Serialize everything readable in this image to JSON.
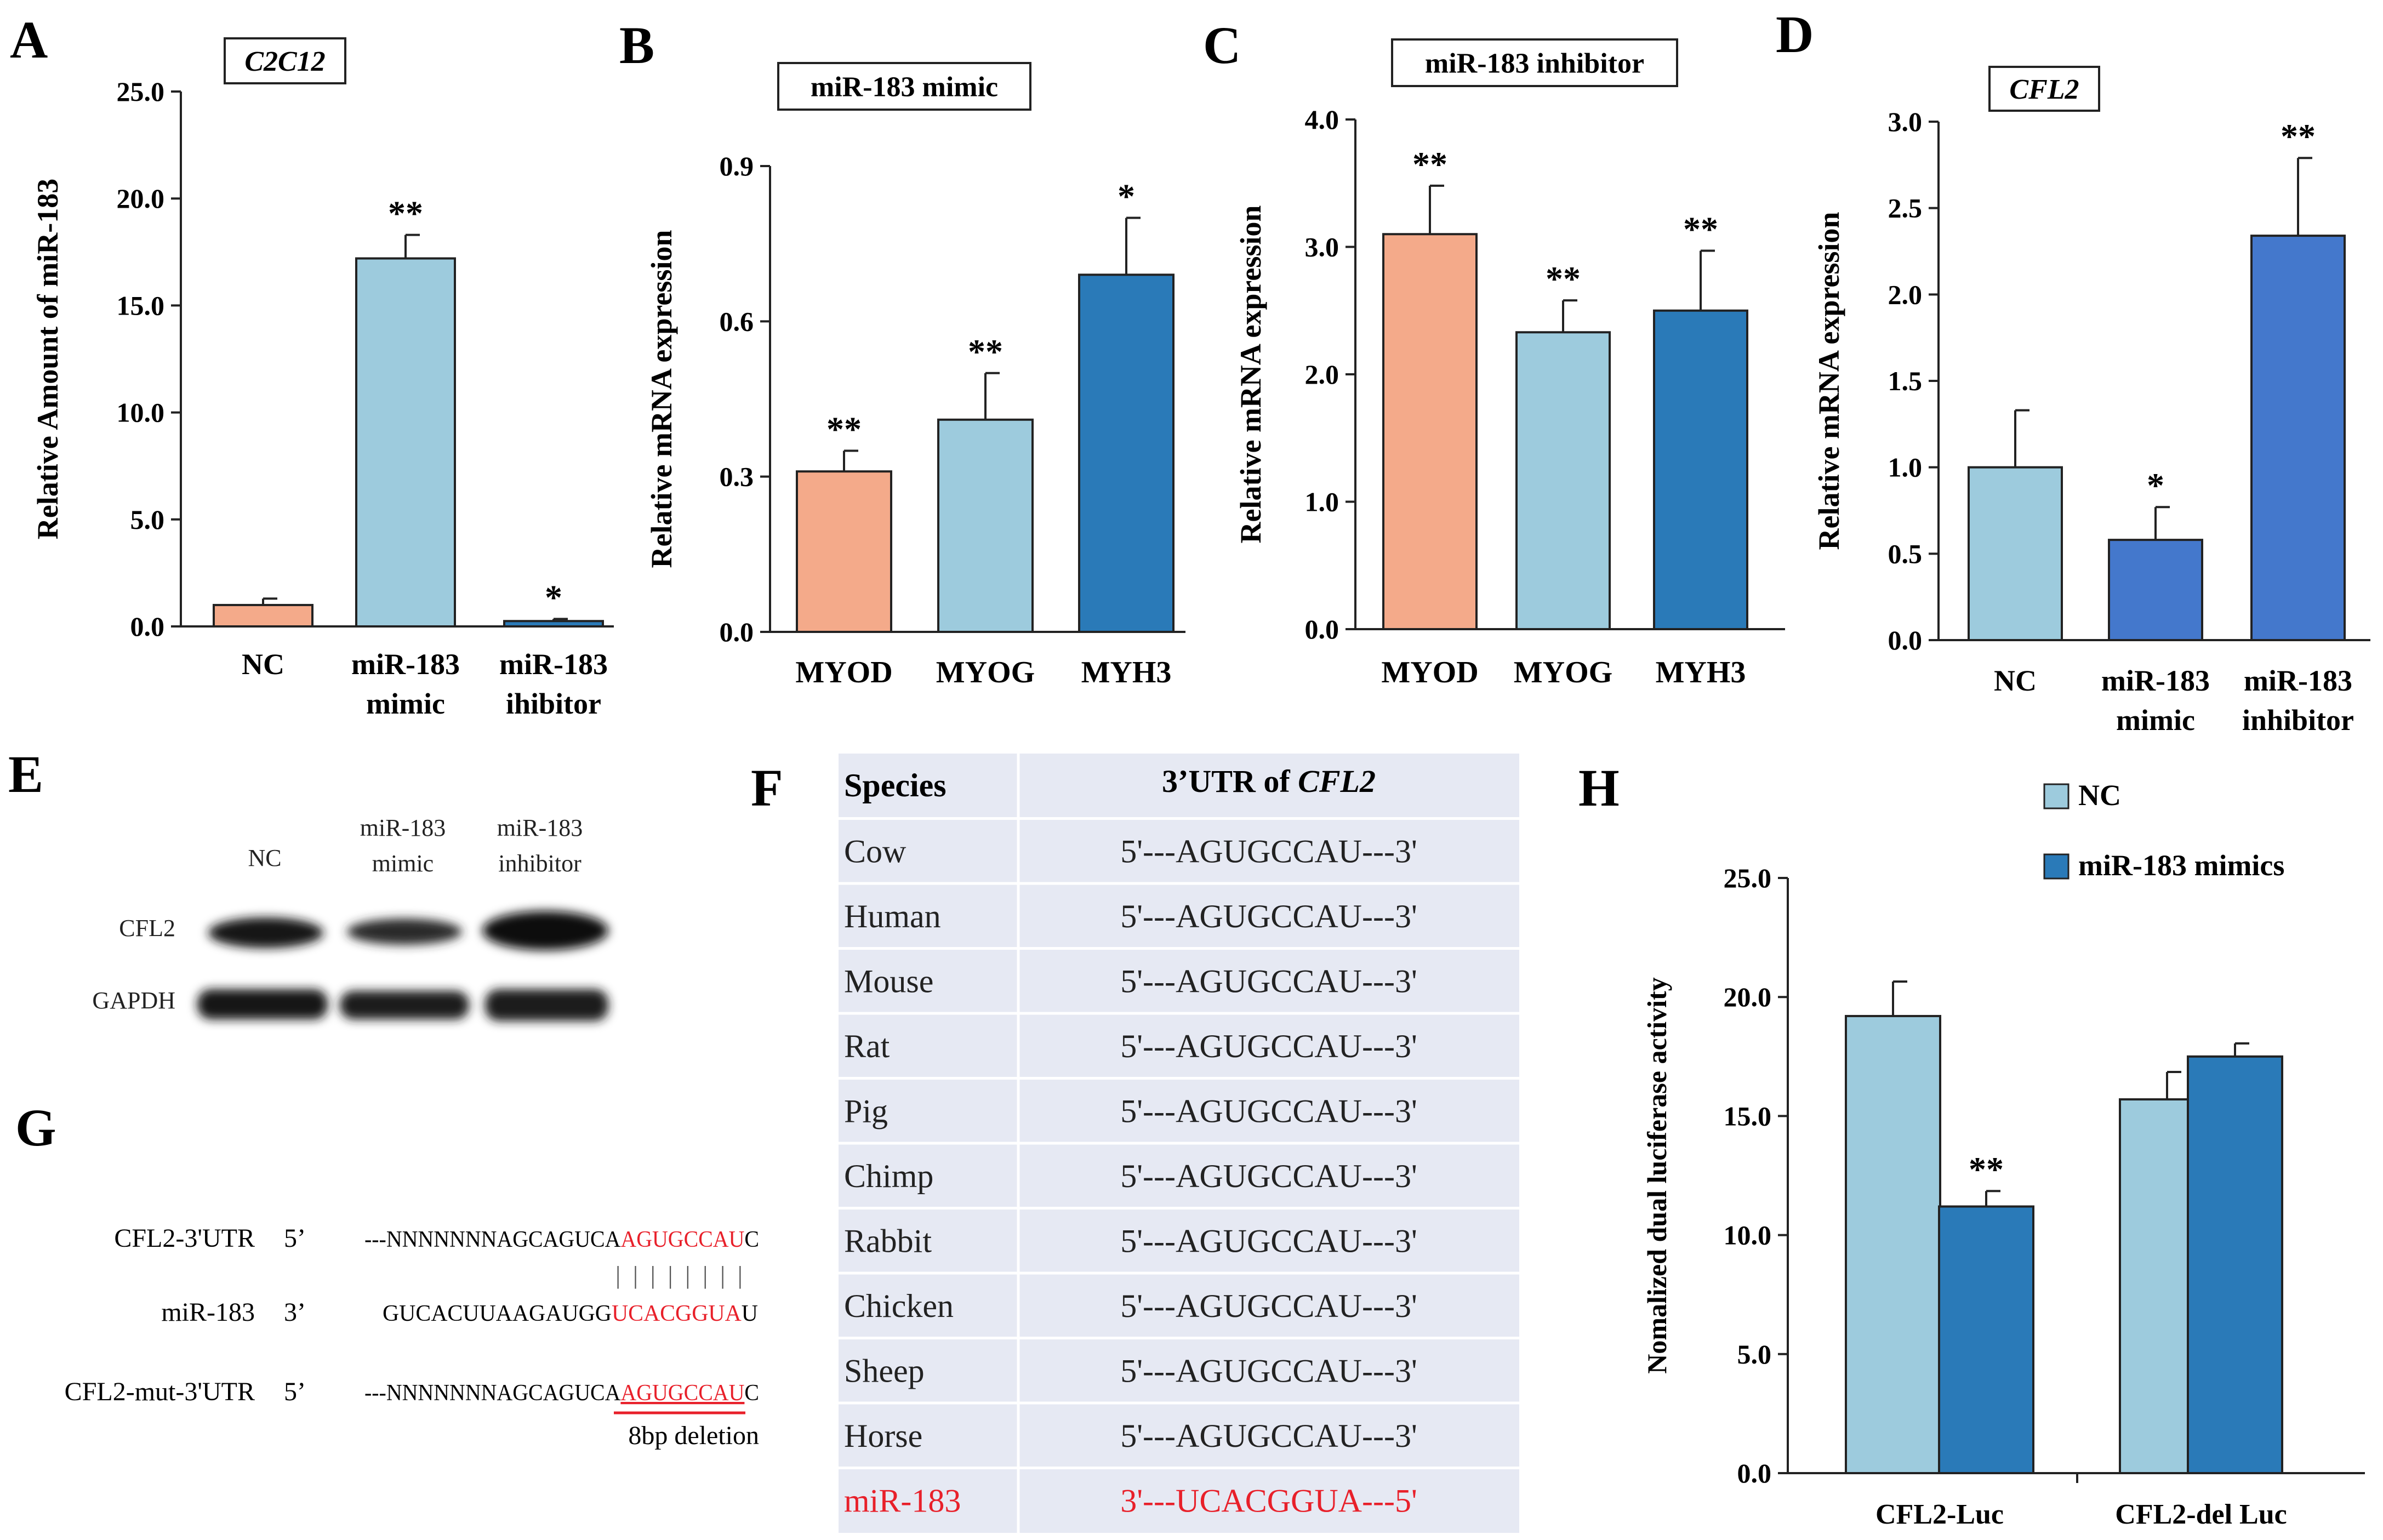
{
  "figure": {
    "colors": {
      "salmon": "#F4AA8A",
      "light_blue": "#9DCBDD",
      "mid_blue": "#2A7AB8",
      "royal_blue": "#4478CC",
      "table_bg": "#E6E9F3",
      "red": "#E8202A",
      "black": "#000000"
    }
  },
  "chart_data": [
    {
      "panel": "A",
      "type": "bar",
      "title": "C2C12",
      "title_italic": true,
      "ylabel": "Relative Amount of miR-183",
      "xlabel": "",
      "ylim": [
        0,
        25
      ],
      "yticks": [
        "0.0",
        "5.0",
        "10.0",
        "15.0",
        "20.0",
        "25.0"
      ],
      "categories": [
        [
          "NC"
        ],
        [
          "miR-183",
          "mimic"
        ],
        [
          "miR-183",
          "ihibitor"
        ]
      ],
      "values": [
        1.0,
        17.2,
        0.25
      ],
      "errors": [
        0.3,
        1.1,
        0.1
      ],
      "significance": [
        "",
        "**",
        "*"
      ],
      "colors": [
        "salmon",
        "light_blue",
        "mid_blue"
      ]
    },
    {
      "panel": "B",
      "type": "bar",
      "title": "miR-183 mimic",
      "title_italic": false,
      "ylabel": "Relative mRNA expression",
      "xlabel": "",
      "ylim": [
        0,
        0.9
      ],
      "yticks": [
        "0.0",
        "0.3",
        "0.6",
        "0.9"
      ],
      "categories": [
        [
          "MYOD"
        ],
        [
          "MYOG"
        ],
        [
          "MYH3"
        ]
      ],
      "values": [
        0.31,
        0.41,
        0.69
      ],
      "errors": [
        0.04,
        0.09,
        0.11
      ],
      "significance": [
        "**",
        "**",
        "*"
      ],
      "colors": [
        "salmon",
        "light_blue",
        "mid_blue"
      ]
    },
    {
      "panel": "C",
      "type": "bar",
      "title": "miR-183 inhibitor",
      "title_italic": false,
      "ylabel": "Relative mRNA expression",
      "xlabel": "",
      "ylim": [
        0,
        4
      ],
      "yticks": [
        "0.0",
        "1.0",
        "2.0",
        "3.0",
        "4.0"
      ],
      "categories": [
        [
          "MYOD"
        ],
        [
          "MYOG"
        ],
        [
          "MYH3"
        ]
      ],
      "values": [
        3.1,
        2.33,
        2.5
      ],
      "errors": [
        0.38,
        0.25,
        0.47
      ],
      "significance": [
        "**",
        "**",
        "**"
      ],
      "colors": [
        "salmon",
        "light_blue",
        "mid_blue"
      ]
    },
    {
      "panel": "D",
      "type": "bar",
      "title": "CFL2",
      "title_italic": true,
      "ylabel": "Relative mRNA expression",
      "xlabel": "",
      "ylim": [
        0,
        3
      ],
      "yticks": [
        "0.0",
        "0.5",
        "1.0",
        "1.5",
        "2.0",
        "2.5",
        "3.0"
      ],
      "categories": [
        [
          "NC"
        ],
        [
          "miR-183",
          "mimic"
        ],
        [
          "miR-183",
          "inhibitor"
        ]
      ],
      "values": [
        1.0,
        0.58,
        2.34
      ],
      "errors": [
        0.33,
        0.19,
        0.45
      ],
      "significance": [
        "",
        "*",
        "**"
      ],
      "colors": [
        "light_blue",
        "royal_blue",
        "royal_blue"
      ]
    },
    {
      "panel": "H",
      "type": "bar",
      "ylabel": "Nomalized dual luciferase activity",
      "xlabel": "",
      "ylim": [
        0,
        25
      ],
      "yticks": [
        "0.0",
        "5.0",
        "10.0",
        "15.0",
        "20.0",
        "25.0"
      ],
      "categories": [
        "CFL2-Luc",
        "CFL2-del Luc"
      ],
      "series": [
        {
          "name": "NC",
          "values": [
            19.2,
            15.7
          ],
          "errors": [
            1.45,
            1.15
          ],
          "color": "light_blue"
        },
        {
          "name": "miR-183 mimics",
          "values": [
            11.2,
            17.5
          ],
          "errors": [
            0.65,
            0.55
          ],
          "color": "mid_blue"
        }
      ],
      "significance": [
        [
          "",
          "**"
        ],
        [
          "",
          ""
        ]
      ],
      "legend_position": "top-right"
    }
  ],
  "blot": {
    "label": "E",
    "lanes": [
      [
        "NC"
      ],
      [
        "miR-183",
        "mimic"
      ],
      [
        "miR-183",
        "inhibitor"
      ]
    ],
    "rows": [
      "CFL2",
      "GAPDH"
    ]
  },
  "table": {
    "label": "F",
    "header_species": "Species",
    "header_utr_prefix": "3’UTR of ",
    "header_utr_gene": "CFL2",
    "rows": [
      {
        "species": "Cow",
        "sequence": "5'---AGUGCCAU---3'",
        "highlight": false
      },
      {
        "species": "Human",
        "sequence": "5'---AGUGCCAU---3'",
        "highlight": false
      },
      {
        "species": "Mouse",
        "sequence": "5'---AGUGCCAU---3'",
        "highlight": false
      },
      {
        "species": "Rat",
        "sequence": "5'---AGUGCCAU---3'",
        "highlight": false
      },
      {
        "species": "Pig",
        "sequence": "5'---AGUGCCAU---3'",
        "highlight": false
      },
      {
        "species": "Chimp",
        "sequence": "5'---AGUGCCAU---3'",
        "highlight": false
      },
      {
        "species": "Rabbit",
        "sequence": "5'---AGUGCCAU---3'",
        "highlight": false
      },
      {
        "species": "Chicken",
        "sequence": "5'---AGUGCCAU---3'",
        "highlight": false
      },
      {
        "species": "Sheep",
        "sequence": "5'---AGUGCCAU---3'",
        "highlight": false
      },
      {
        "species": "Horse",
        "sequence": "5'---AGUGCCAU---3'",
        "highlight": false
      },
      {
        "species": "miR-183",
        "sequence": "3'---UCACGGUA---5'",
        "highlight": true
      }
    ]
  },
  "alignment": {
    "label": "G",
    "rows": [
      {
        "name": "CFL2-3'UTR",
        "end": "5’",
        "pre": "---NNNNNNNAGCAGUCA",
        "seed": "AGUGCCAU",
        "post": "C",
        "underline": false
      },
      {
        "name": "miR-183",
        "end": "3’",
        "pre": "GUCACUUAAGAUGG",
        "seed": "UCACGGUA",
        "post": "U",
        "underline": false
      },
      {
        "name": "CFL2-mut-3'UTR",
        "end": "5’",
        "pre": "---NNNNNNNAGCAGUCA",
        "seed": "AGUGCCAU",
        "post": "C",
        "underline": true
      }
    ],
    "pairing": "| | | | | | | |",
    "note": "8bp deletion"
  }
}
